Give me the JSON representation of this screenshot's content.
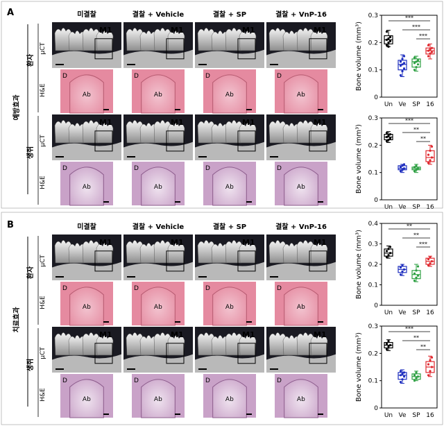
{
  "panels": [
    {
      "letter": "A",
      "side_label": "예방효과",
      "columns": [
        "미결찰",
        "결찰 + Vehicle",
        "결찰 + SP",
        "결찰 + VnP-16"
      ],
      "groups": [
        {
          "name": "환자",
          "ct_label": "μCT",
          "he_label": "H&E",
          "tooth_label": "M1",
          "left_mark": "D",
          "center_mark": "Ab"
        },
        {
          "name": "생쥐",
          "ct_label": "μCT",
          "he_label": "H&E",
          "tooth_label": "M1",
          "left_mark": "D",
          "center_mark": "Ab"
        }
      ]
    },
    {
      "letter": "B",
      "side_label": "치료효과",
      "columns": [
        "미결찰",
        "결찰 + Vehicle",
        "결찰 + SP",
        "결찰 + VnP-16"
      ],
      "groups": [
        {
          "name": "환자",
          "ct_label": "μCT",
          "he_label": "H&E",
          "tooth_label": "M1",
          "left_mark": "D",
          "center_mark": "Ab"
        },
        {
          "name": "생쥐",
          "ct_label": "μCT",
          "he_label": "H&E",
          "tooth_label": "M1",
          "left_mark": "D",
          "center_mark": "Ab"
        }
      ]
    }
  ],
  "colors": {
    "Un": "#000000",
    "Ve": "#1f2fbf",
    "SP": "#2ea043",
    "16": "#e0282e",
    "he_pink": "#e58aa0",
    "he_purple": "#c9a2c8",
    "ct_bg": "#1a1a22"
  },
  "chart_data": [
    {
      "type": "box",
      "ylabel": "Bone volume (mm³)",
      "categories": [
        "Un",
        "Ve",
        "SP",
        "16"
      ],
      "ylim": [
        0,
        0.3
      ],
      "yticks": [
        "0",
        "0.1",
        "0.2",
        "0.3"
      ],
      "series": [
        {
          "category": "Un",
          "q1": 0.195,
          "median": 0.21,
          "q3": 0.225,
          "min": 0.185,
          "max": 0.245,
          "points": [
            0.19,
            0.2,
            0.205,
            0.21,
            0.215,
            0.22,
            0.24,
            0.185
          ]
        },
        {
          "category": "Ve",
          "q1": 0.1,
          "median": 0.12,
          "q3": 0.135,
          "min": 0.075,
          "max": 0.155,
          "points": [
            0.08,
            0.095,
            0.105,
            0.115,
            0.12,
            0.125,
            0.13,
            0.14,
            0.15
          ]
        },
        {
          "category": "SP",
          "q1": 0.11,
          "median": 0.13,
          "q3": 0.14,
          "min": 0.095,
          "max": 0.15,
          "points": [
            0.1,
            0.11,
            0.12,
            0.125,
            0.13,
            0.135,
            0.145
          ]
        },
        {
          "category": "16",
          "q1": 0.158,
          "median": 0.17,
          "q3": 0.18,
          "min": 0.14,
          "max": 0.195,
          "points": [
            0.15,
            0.16,
            0.165,
            0.17,
            0.175,
            0.18,
            0.19
          ]
        }
      ],
      "significance": [
        {
          "pair": [
            "Un",
            "16"
          ],
          "label": "***"
        },
        {
          "pair": [
            "Ve",
            "16"
          ],
          "label": "***"
        },
        {
          "pair": [
            "SP",
            "16"
          ],
          "label": "***"
        }
      ]
    },
    {
      "type": "box",
      "ylabel": "Bone volume (mm³)",
      "categories": [
        "Un",
        "Ve",
        "SP",
        "16"
      ],
      "ylim": [
        0,
        0.3
      ],
      "yticks": [
        "0",
        "0.1",
        "0.2",
        "0.3"
      ],
      "series": [
        {
          "category": "Un",
          "q1": 0.22,
          "median": 0.23,
          "q3": 0.24,
          "min": 0.21,
          "max": 0.25,
          "points": [
            0.215,
            0.22,
            0.225,
            0.23,
            0.235,
            0.24,
            0.245
          ]
        },
        {
          "category": "Ve",
          "q1": 0.11,
          "median": 0.115,
          "q3": 0.125,
          "min": 0.1,
          "max": 0.13,
          "points": [
            0.105,
            0.11,
            0.115,
            0.12,
            0.125,
            0.13
          ]
        },
        {
          "category": "SP",
          "q1": 0.11,
          "median": 0.115,
          "q3": 0.12,
          "min": 0.1,
          "max": 0.13,
          "points": [
            0.105,
            0.11,
            0.115,
            0.12,
            0.125
          ]
        },
        {
          "category": "16",
          "q1": 0.14,
          "median": 0.155,
          "q3": 0.18,
          "min": 0.13,
          "max": 0.2,
          "points": [
            0.135,
            0.145,
            0.155,
            0.165,
            0.18,
            0.195
          ]
        }
      ],
      "significance": [
        {
          "pair": [
            "Un",
            "16"
          ],
          "label": "***"
        },
        {
          "pair": [
            "Ve",
            "16"
          ],
          "label": "**"
        },
        {
          "pair": [
            "SP",
            "16"
          ],
          "label": "**"
        }
      ]
    },
    {
      "type": "box",
      "ylabel": "Bone volume (mm³)",
      "categories": [
        "Un",
        "Ve",
        "SP",
        "16"
      ],
      "ylim": [
        0,
        0.4
      ],
      "yticks": [
        "0",
        "0.1",
        "0.2",
        "0.3",
        "0.4"
      ],
      "series": [
        {
          "category": "Un",
          "q1": 0.24,
          "median": 0.255,
          "q3": 0.275,
          "min": 0.23,
          "max": 0.29,
          "points": [
            0.235,
            0.245,
            0.255,
            0.265,
            0.275,
            0.285
          ]
        },
        {
          "category": "Ve",
          "q1": 0.16,
          "median": 0.175,
          "q3": 0.19,
          "min": 0.145,
          "max": 0.2,
          "points": [
            0.15,
            0.165,
            0.175,
            0.185,
            0.195
          ]
        },
        {
          "category": "SP",
          "q1": 0.13,
          "median": 0.15,
          "q3": 0.17,
          "min": 0.115,
          "max": 0.2,
          "points": [
            0.12,
            0.135,
            0.145,
            0.155,
            0.17,
            0.19
          ]
        },
        {
          "category": "16",
          "q1": 0.2,
          "median": 0.215,
          "q3": 0.23,
          "min": 0.19,
          "max": 0.24,
          "points": [
            0.195,
            0.205,
            0.215,
            0.225,
            0.235
          ]
        }
      ],
      "significance": [
        {
          "pair": [
            "Un",
            "16"
          ],
          "label": "**"
        },
        {
          "pair": [
            "Ve",
            "16"
          ],
          "label": "**"
        },
        {
          "pair": [
            "SP",
            "16"
          ],
          "label": "***"
        }
      ]
    },
    {
      "type": "box",
      "ylabel": "Bone volume (mm³)",
      "categories": [
        "Un",
        "Ve",
        "SP",
        "16"
      ],
      "ylim": [
        0,
        0.3
      ],
      "yticks": [
        "0",
        "0.1",
        "0.2",
        "0.3"
      ],
      "series": [
        {
          "category": "Un",
          "q1": 0.22,
          "median": 0.23,
          "q3": 0.24,
          "min": 0.21,
          "max": 0.25,
          "points": [
            0.215,
            0.225,
            0.23,
            0.235,
            0.245
          ]
        },
        {
          "category": "Ve",
          "q1": 0.105,
          "median": 0.12,
          "q3": 0.13,
          "min": 0.09,
          "max": 0.14,
          "points": [
            0.095,
            0.105,
            0.115,
            0.12,
            0.125,
            0.13,
            0.135
          ]
        },
        {
          "category": "SP",
          "q1": 0.105,
          "median": 0.115,
          "q3": 0.125,
          "min": 0.1,
          "max": 0.135,
          "points": [
            0.1,
            0.11,
            0.115,
            0.12,
            0.13
          ]
        },
        {
          "category": "16",
          "q1": 0.13,
          "median": 0.15,
          "q3": 0.17,
          "min": 0.115,
          "max": 0.19,
          "points": [
            0.12,
            0.135,
            0.15,
            0.16,
            0.175,
            0.185
          ]
        }
      ],
      "significance": [
        {
          "pair": [
            "Un",
            "16"
          ],
          "label": "***"
        },
        {
          "pair": [
            "Ve",
            "16"
          ],
          "label": "**"
        },
        {
          "pair": [
            "SP",
            "16"
          ],
          "label": "**"
        }
      ]
    }
  ]
}
